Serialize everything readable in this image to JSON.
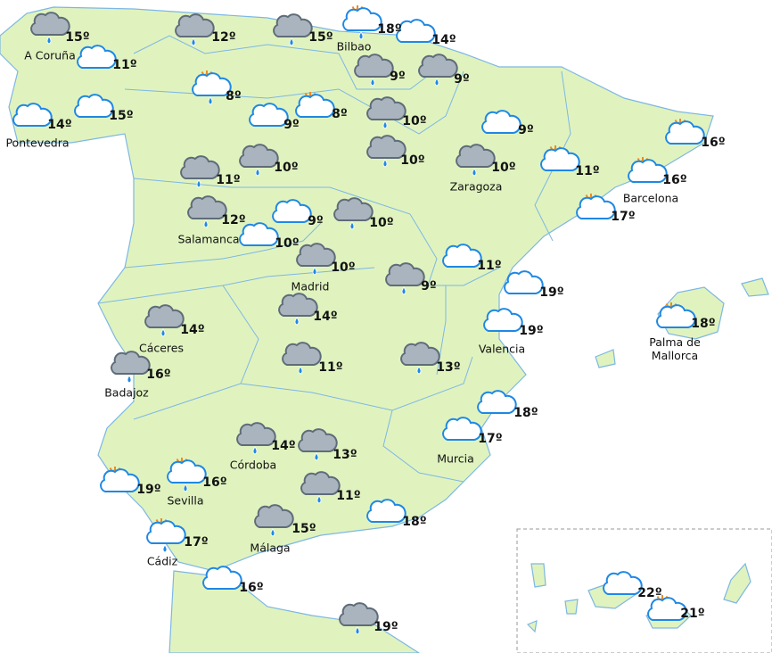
{
  "cities": [
    {
      "name": "A Coruña"
    },
    {
      "name": "Pontevedra"
    },
    {
      "name": "Bilbao"
    },
    {
      "name": "Zaragoza"
    },
    {
      "name": "Barcelona"
    },
    {
      "name": "Salamanca"
    },
    {
      "name": "Madrid"
    },
    {
      "name": "Cáceres"
    },
    {
      "name": "Badajoz"
    },
    {
      "name": "Valencia"
    },
    {
      "name": "Palma de Mallorca"
    },
    {
      "name": "Murcia"
    },
    {
      "name": "Córdoba"
    },
    {
      "name": "Sevilla"
    },
    {
      "name": "Málaga"
    },
    {
      "name": "Cádiz"
    }
  ],
  "forecasts": [
    {
      "icon": "rain",
      "temp": "15º"
    },
    {
      "icon": "cloud",
      "temp": "11º"
    },
    {
      "icon": "rain",
      "temp": "12º"
    },
    {
      "icon": "rain",
      "temp": "15º"
    },
    {
      "icon": "sun-rain",
      "temp": "18º"
    },
    {
      "icon": "cloud",
      "temp": "14º"
    },
    {
      "icon": "rain",
      "temp": "9º"
    },
    {
      "icon": "rain",
      "temp": "9º"
    },
    {
      "icon": "sun-rain",
      "temp": "8º"
    },
    {
      "icon": "sun-cloud",
      "temp": "8º"
    },
    {
      "icon": "cloud",
      "temp": "9º"
    },
    {
      "icon": "cloud",
      "temp": "14º"
    },
    {
      "icon": "cloud",
      "temp": "15º"
    },
    {
      "icon": "rain",
      "temp": "10º"
    },
    {
      "icon": "cloud",
      "temp": "9º"
    },
    {
      "icon": "sun-cloud",
      "temp": "16º"
    },
    {
      "icon": "rain",
      "temp": "10º"
    },
    {
      "icon": "rain",
      "temp": "11º"
    },
    {
      "icon": "rain",
      "temp": "10º"
    },
    {
      "icon": "rain",
      "temp": "10º"
    },
    {
      "icon": "sun-cloud",
      "temp": "11º"
    },
    {
      "icon": "sun-cloud",
      "temp": "16º"
    },
    {
      "icon": "sun-cloud",
      "temp": "17º"
    },
    {
      "icon": "rain",
      "temp": "12º"
    },
    {
      "icon": "cloud",
      "temp": "9º"
    },
    {
      "icon": "cloud",
      "temp": "10º"
    },
    {
      "icon": "rain",
      "temp": "10º"
    },
    {
      "icon": "cloud",
      "temp": "11º"
    },
    {
      "icon": "rain",
      "temp": "10º"
    },
    {
      "icon": "rain",
      "temp": "9º"
    },
    {
      "icon": "cloud",
      "temp": "19º"
    },
    {
      "icon": "rain",
      "temp": "14º"
    },
    {
      "icon": "cloud",
      "temp": "19º"
    },
    {
      "icon": "sun-cloud",
      "temp": "18º"
    },
    {
      "icon": "rain",
      "temp": "14º"
    },
    {
      "icon": "rain",
      "temp": "16º"
    },
    {
      "icon": "rain",
      "temp": "11º"
    },
    {
      "icon": "rain",
      "temp": "13º"
    },
    {
      "icon": "cloud",
      "temp": "18º"
    },
    {
      "icon": "cloud",
      "temp": "17º"
    },
    {
      "icon": "rain",
      "temp": "14º"
    },
    {
      "icon": "rain",
      "temp": "13º"
    },
    {
      "icon": "sun-cloud",
      "temp": "19º"
    },
    {
      "icon": "sun-rain",
      "temp": "16º"
    },
    {
      "icon": "rain",
      "temp": "11º"
    },
    {
      "icon": "cloud",
      "temp": "18º"
    },
    {
      "icon": "rain",
      "temp": "15º"
    },
    {
      "icon": "sun-rain",
      "temp": "17º"
    },
    {
      "icon": "cloud",
      "temp": "16º"
    },
    {
      "icon": "rain",
      "temp": "19º"
    },
    {
      "icon": "cloud",
      "temp": "22º"
    },
    {
      "icon": "sun-cloud",
      "temp": "21º"
    }
  ]
}
